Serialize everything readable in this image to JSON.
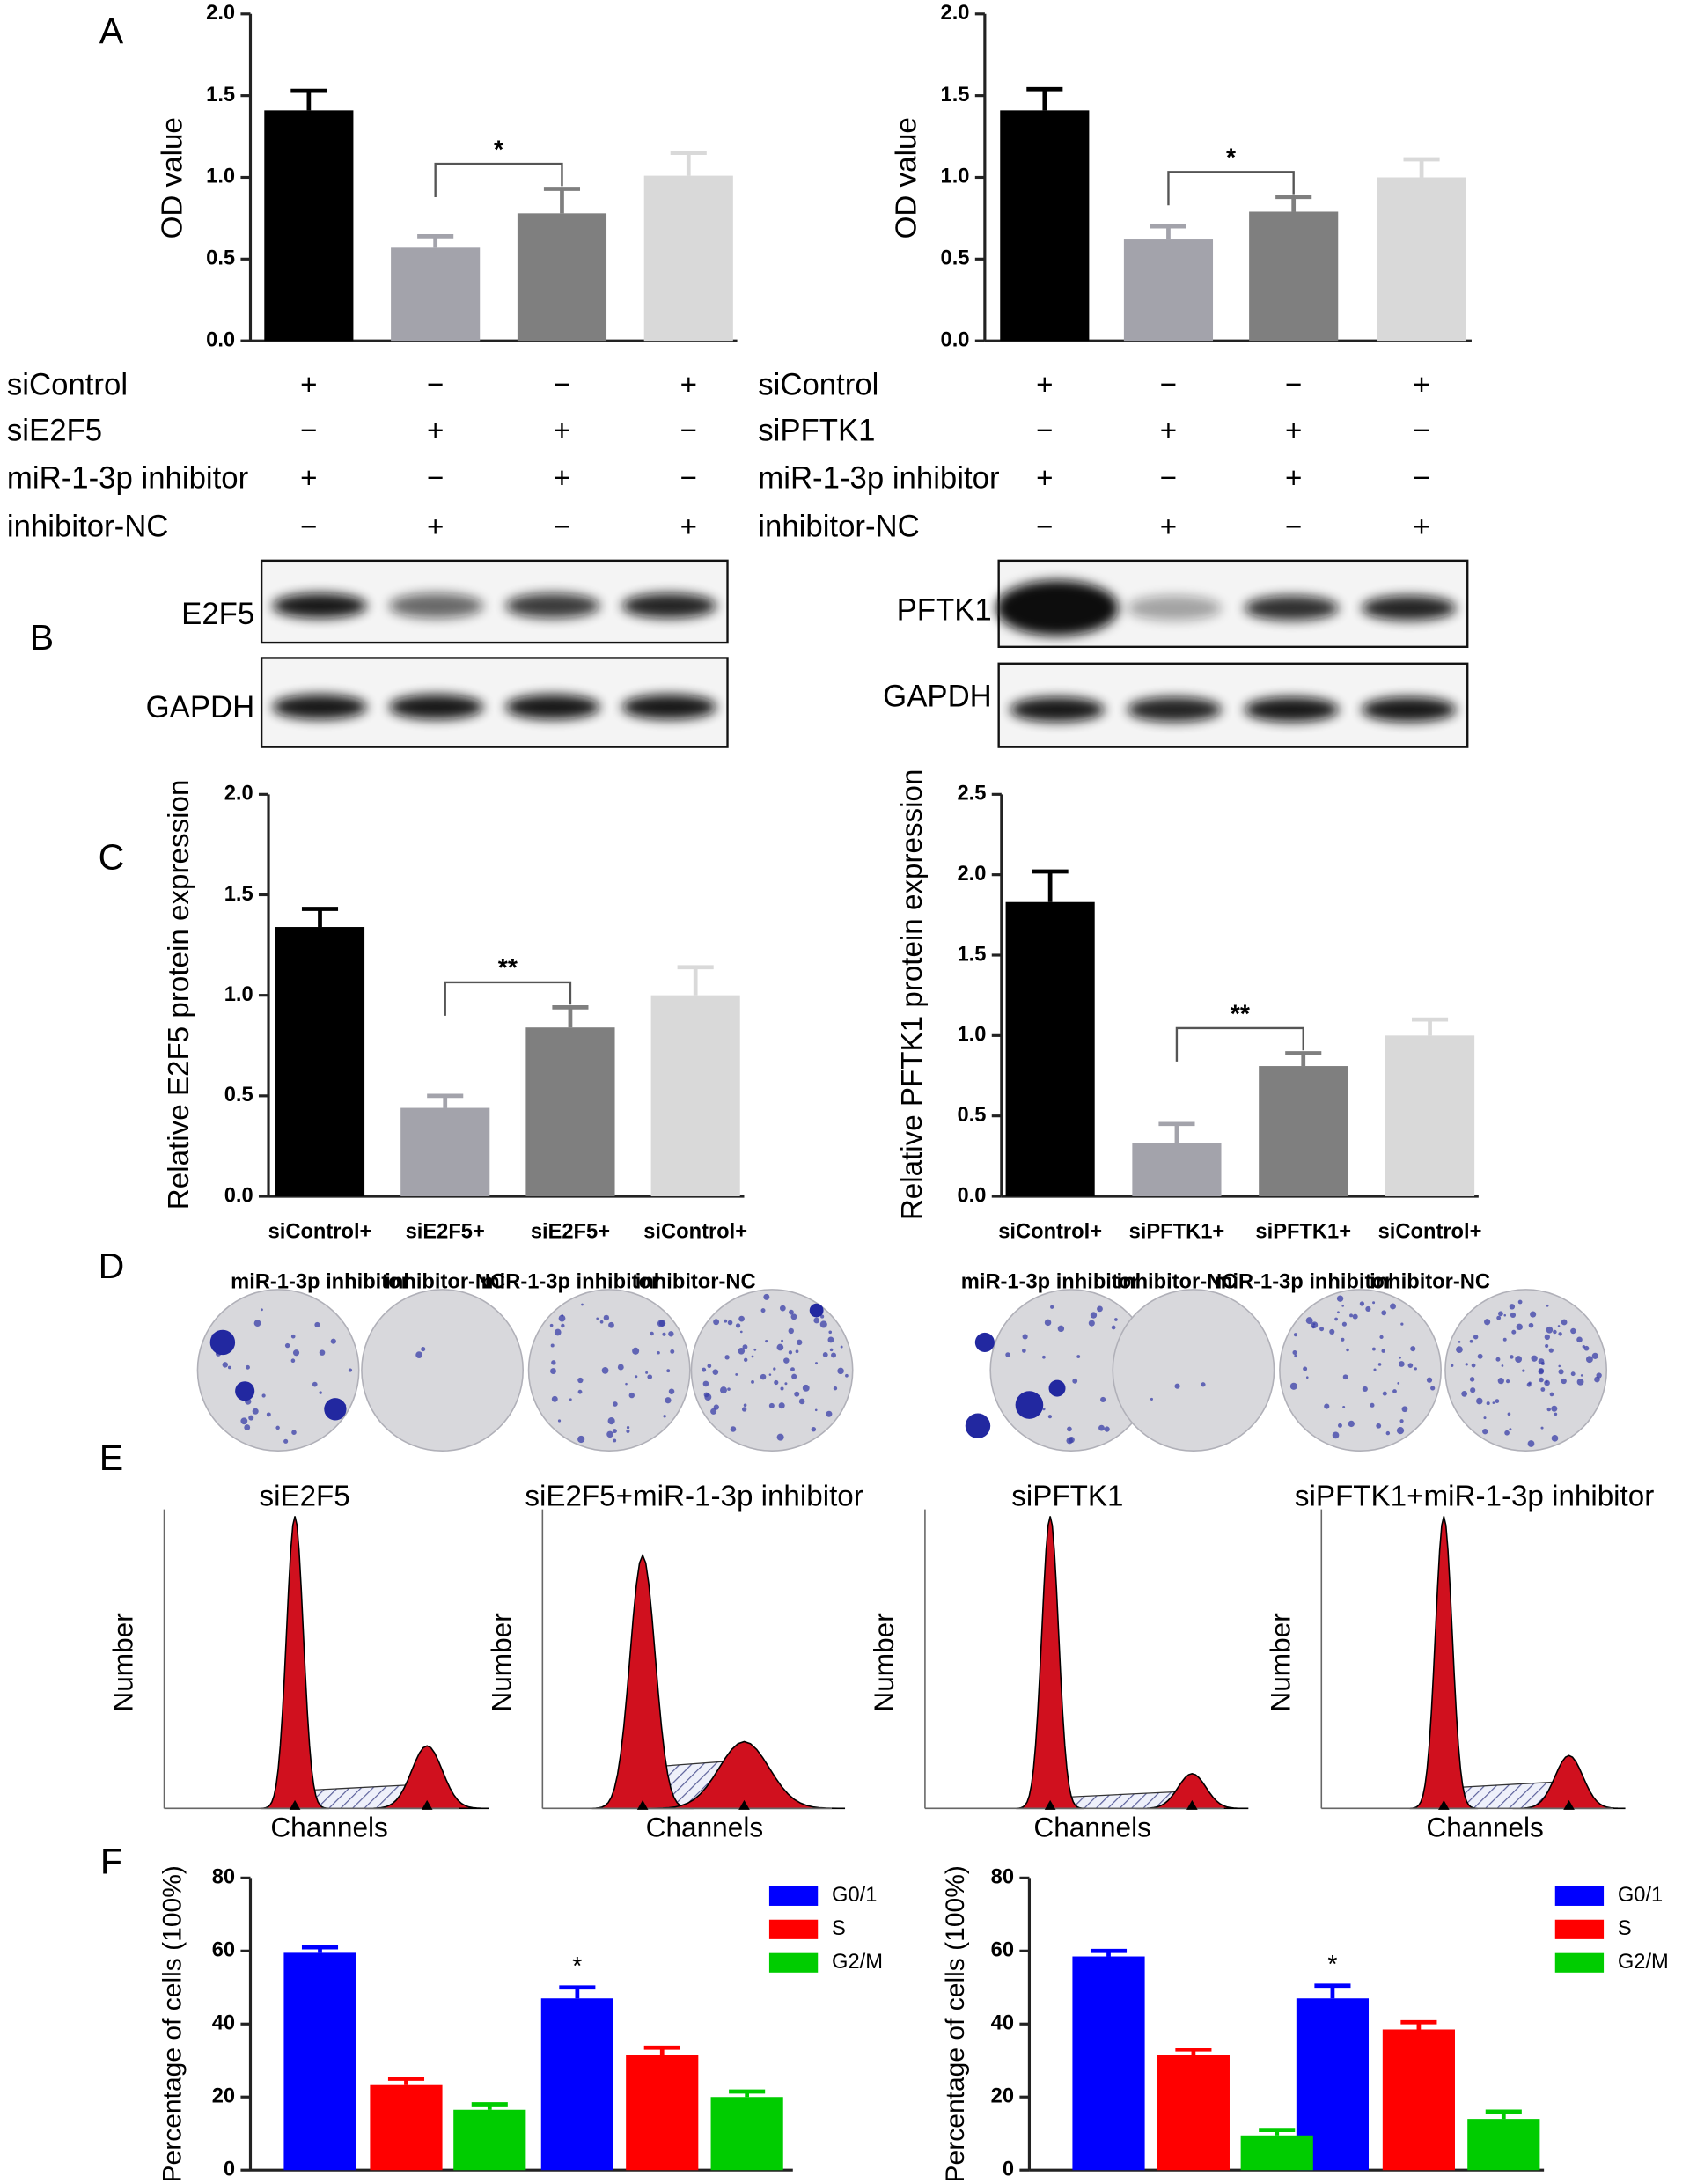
{
  "chart_data": [
    {
      "type": "bar",
      "ylabel": "OD value",
      "categories": [
        null,
        null,
        null,
        null
      ],
      "values": [
        1.41,
        0.57,
        0.78,
        1.01
      ],
      "errors": [
        0.12,
        0.07,
        0.15,
        0.14
      ],
      "colors": [
        "#000000",
        "#a3a3ab",
        "#7f7f7f",
        "#d9d9d9"
      ],
      "ylim": [
        0,
        2
      ],
      "yticks": [
        {
          "value": 0,
          "label": "0.0"
        },
        0.5,
        {
          "value": 1,
          "label": "1.0"
        },
        1.5,
        {
          "value": 2,
          "label": "2.0"
        }
      ],
      "annotation": "*",
      "conditions": [
        {
          "name": "siControl",
          "signs": [
            "+",
            "−",
            "−",
            "+"
          ]
        },
        {
          "name": "siE2F5",
          "signs": [
            "−",
            "+",
            "+",
            "−"
          ]
        },
        {
          "name": "miR-1-3p inhibitor",
          "signs": [
            "+",
            "−",
            "+",
            "−"
          ]
        },
        {
          "name": "inhibitor-NC",
          "signs": [
            "−",
            "+",
            "−",
            "+"
          ]
        }
      ]
    },
    {
      "type": "bar",
      "ylabel": "OD value",
      "categories": [
        null,
        null,
        null,
        null
      ],
      "values": [
        1.41,
        0.62,
        0.79,
        1.0
      ],
      "errors": [
        0.13,
        0.08,
        0.09,
        0.11
      ],
      "colors": [
        "#000000",
        "#a3a3ab",
        "#7f7f7f",
        "#d9d9d9"
      ],
      "ylim": [
        0,
        2
      ],
      "yticks": [
        {
          "value": 0,
          "label": "0.0"
        },
        0.5,
        {
          "value": 1,
          "label": "1.0"
        },
        1.5,
        {
          "value": 2,
          "label": "2.0"
        }
      ],
      "annotation": "*",
      "conditions": [
        {
          "name": "siControl",
          "signs": [
            "+",
            "−",
            "−",
            "+"
          ]
        },
        {
          "name": "siPFTK1",
          "signs": [
            "−",
            "+",
            "+",
            "−"
          ]
        },
        {
          "name": "miR-1-3p inhibitor",
          "signs": [
            "+",
            "−",
            "+",
            "−"
          ]
        },
        {
          "name": "inhibitor-NC",
          "signs": [
            "−",
            "+",
            "−",
            "+"
          ]
        }
      ]
    },
    {
      "type": "bar",
      "ylabel": "Relative E2F5 protein expression",
      "categories": [
        [
          "siControl+",
          "miR-1-3p inhibitor"
        ],
        [
          "siE2F5+",
          "inhibitor-NC"
        ],
        [
          "siE2F5+",
          "miR-1-3p inhibitor"
        ],
        [
          "siControl+",
          "inhibitor-NC"
        ]
      ],
      "values": [
        1.34,
        0.44,
        0.84,
        1.0
      ],
      "errors": [
        0.09,
        0.06,
        0.1,
        0.14
      ],
      "colors": [
        "#000000",
        "#a3a3ab",
        "#7f7f7f",
        "#d9d9d9"
      ],
      "ylim": [
        0,
        2
      ],
      "yticks": [
        {
          "value": 0,
          "label": "0.0"
        },
        0.5,
        {
          "value": 1,
          "label": "1.0"
        },
        1.5,
        {
          "value": 2,
          "label": "2.0"
        }
      ],
      "annotation": "**"
    },
    {
      "type": "bar",
      "ylabel": "Relative PFTK1 protein expression",
      "categories": [
        [
          "siControl+",
          "miR-1-3p inhibitor"
        ],
        [
          "siPFTK1+",
          "inhibitor-NC"
        ],
        [
          "siPFTK1+",
          "miR-1-3p inhibitor"
        ],
        [
          "siControl+",
          "inhibitor-NC"
        ]
      ],
      "values": [
        1.83,
        0.33,
        0.81,
        1.0
      ],
      "errors": [
        0.19,
        0.12,
        0.08,
        0.1
      ],
      "colors": [
        "#000000",
        "#a3a3ab",
        "#7f7f7f",
        "#d9d9d9"
      ],
      "ylim": [
        0,
        2.5
      ],
      "yticks": [
        {
          "value": 0,
          "label": "0.0"
        },
        0.5,
        {
          "value": 1,
          "label": "1.0"
        },
        1.5,
        {
          "value": 2,
          "label": "2.0"
        },
        2.5
      ],
      "annotation": "**"
    },
    {
      "type": "bar",
      "ylabel": "Percentage of cells (100%)",
      "categories": [
        null,
        null
      ],
      "series": [
        {
          "name": "G0/1",
          "color": "#0000ff",
          "values": [
            59.5,
            47
          ],
          "errors": [
            1.5,
            3
          ]
        },
        {
          "name": "S",
          "color": "#ff0000",
          "values": [
            23.5,
            31.5
          ],
          "errors": [
            1.5,
            2
          ]
        },
        {
          "name": "G2/M",
          "color": "#00cc00",
          "values": [
            16.5,
            20
          ],
          "errors": [
            1.5,
            1.5
          ]
        }
      ],
      "ylim": [
        0,
        80
      ],
      "yticks": [
        0,
        20,
        40,
        60,
        80
      ],
      "annotation": "*"
    },
    {
      "type": "bar",
      "ylabel": "Percentage of cells (100%)",
      "categories": [
        null,
        null
      ],
      "series": [
        {
          "name": "G0/1",
          "color": "#0000ff",
          "values": [
            58.5,
            47
          ],
          "errors": [
            1.5,
            3.5
          ]
        },
        {
          "name": "S",
          "color": "#ff0000",
          "values": [
            31.5,
            38.5
          ],
          "errors": [
            1.5,
            2
          ]
        },
        {
          "name": "G2/M",
          "color": "#00cc00",
          "values": [
            9.5,
            14
          ],
          "errors": [
            1.5,
            2
          ]
        }
      ],
      "ylim": [
        0,
        80
      ],
      "yticks": [
        0,
        20,
        40,
        60,
        80
      ],
      "annotation": "*"
    }
  ],
  "panel_letters": [
    "A",
    "B",
    "C",
    "D",
    "E",
    "F"
  ],
  "blots": [
    [
      "E2F5",
      "GAPDH"
    ],
    [
      "PFTK1",
      "GAPDH"
    ]
  ],
  "flow": [
    {
      "title": "siE2F5",
      "ylabel": "Number",
      "xlabel": "Channels"
    },
    {
      "title": "siE2F5+miR-1-3p inhibitor",
      "ylabel": "Number",
      "xlabel": "Channels"
    },
    {
      "title": "siPFTK1",
      "ylabel": "Number",
      "xlabel": "Channels"
    },
    {
      "title": "siPFTK1+miR-1-3p inhibitor",
      "ylabel": "Number",
      "xlabel": "Channels"
    }
  ]
}
